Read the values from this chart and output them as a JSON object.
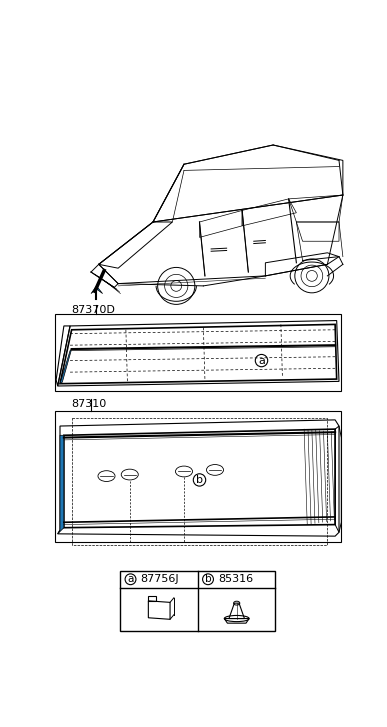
{
  "bg_color": "#ffffff",
  "label_87370D": "87370D",
  "label_87310": "87310",
  "part_a_code": "87756J",
  "part_b_code": "85316",
  "part_a_label": "a",
  "part_b_label": "b"
}
